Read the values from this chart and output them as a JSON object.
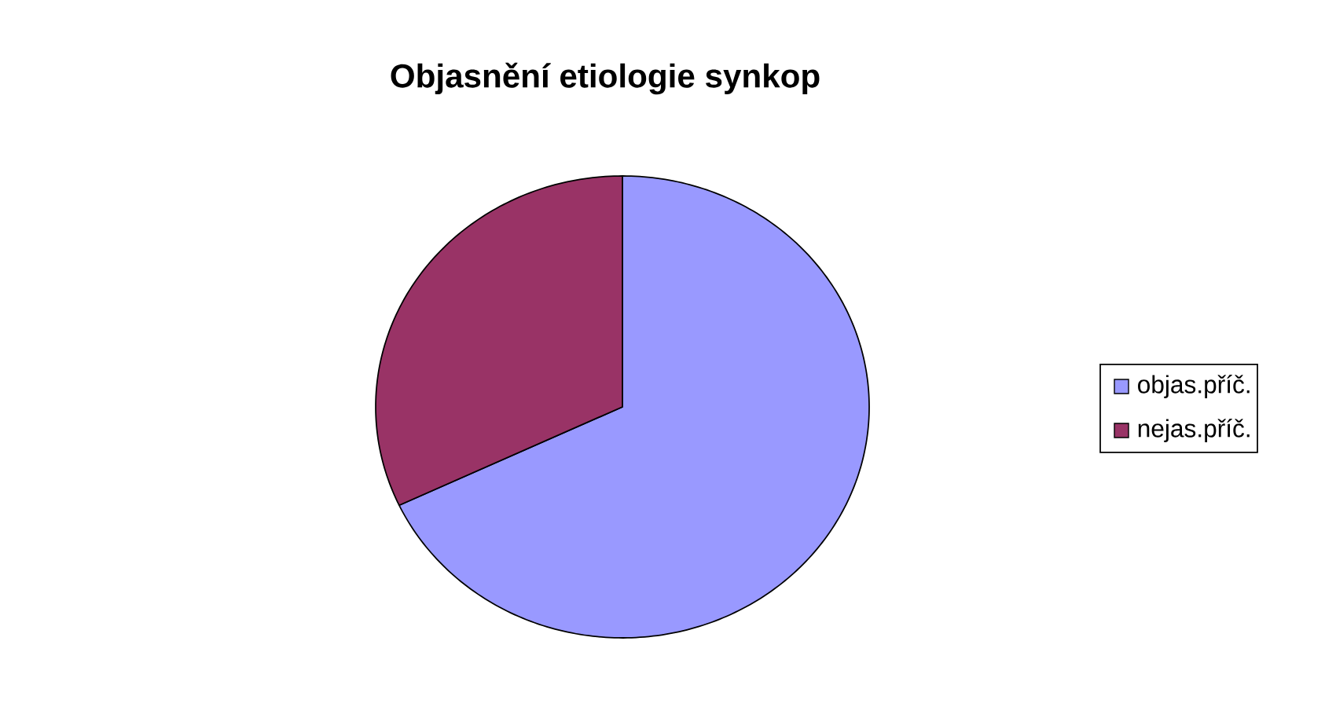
{
  "chart_data": {
    "type": "pie",
    "title": "Objasnění etiologie synkop",
    "categories": [
      "objas.příč.",
      "nejas.příč."
    ],
    "values": [
      68,
      32
    ],
    "colors": [
      "#9999ff",
      "#993366"
    ],
    "legend": "right"
  }
}
